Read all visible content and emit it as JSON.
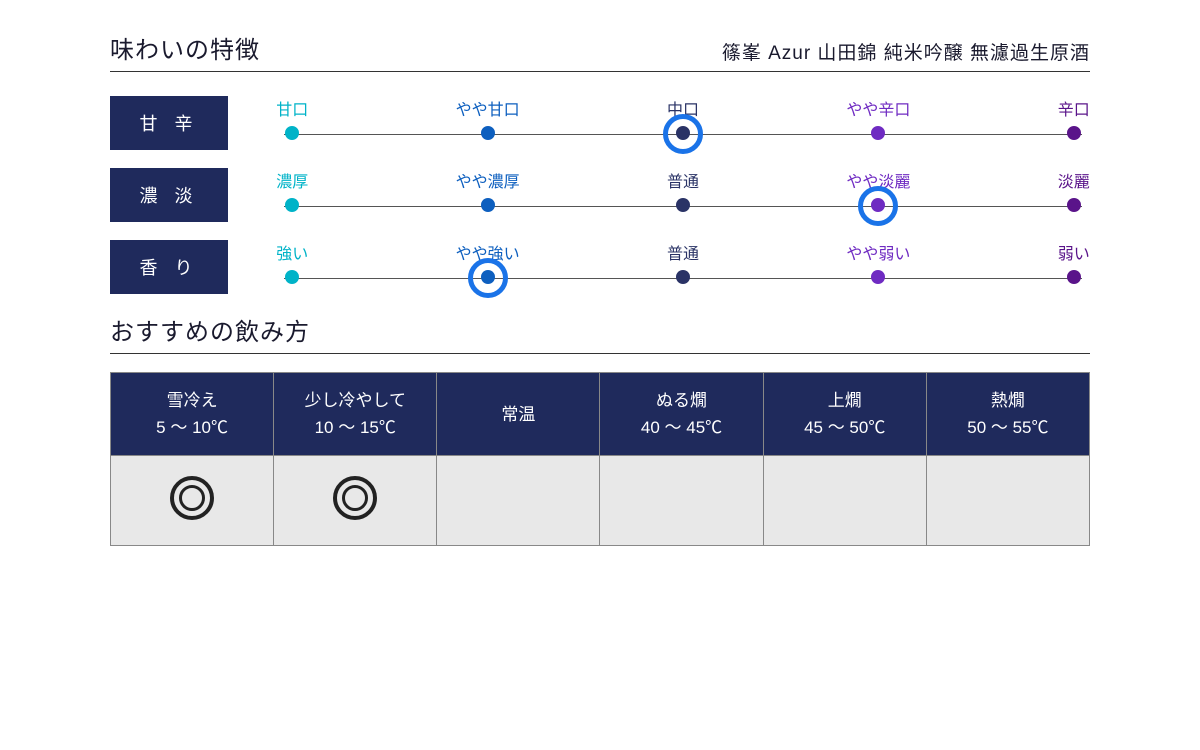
{
  "header": {
    "title": "味わいの特徴",
    "subtitle": "篠峯 Azur 山田錦 純米吟醸 無濾過生原酒"
  },
  "scale_colors": {
    "c0": "#00b3c8",
    "c1": "#0d5fbf",
    "c2": "#2a3366",
    "c3": "#6f2bc2",
    "c4": "#5a148a",
    "ring": "#1a73e8",
    "tag_bg": "#1f2a5c"
  },
  "scales": [
    {
      "tag": "甘 辛",
      "labels": [
        "甘口",
        "やや甘口",
        "中口",
        "やや辛口",
        "辛口"
      ],
      "selected_index": 2
    },
    {
      "tag": "濃 淡",
      "labels": [
        "濃厚",
        "やや濃厚",
        "普通",
        "やや淡麗",
        "淡麗"
      ],
      "selected_index": 3
    },
    {
      "tag": "香 り",
      "labels": [
        "強い",
        "やや強い",
        "普通",
        "やや弱い",
        "弱い"
      ],
      "selected_index": 1
    }
  ],
  "serve_title": "おすすめの飲み方",
  "temps": [
    {
      "name": "雪冷え",
      "range": "5 ～ 10℃",
      "mark": true
    },
    {
      "name": "少し冷やして",
      "range": "10 ～ 15℃",
      "mark": true
    },
    {
      "name": "常温",
      "range": "",
      "mark": false
    },
    {
      "name": "ぬる燗",
      "range": "40 ～ 45℃",
      "mark": false
    },
    {
      "name": "上燗",
      "range": "45 ～ 50℃",
      "mark": false
    },
    {
      "name": "熱燗",
      "range": "50 ～ 55℃",
      "mark": false
    }
  ],
  "tick_positions_pct": [
    2,
    26,
    50,
    74,
    98
  ]
}
